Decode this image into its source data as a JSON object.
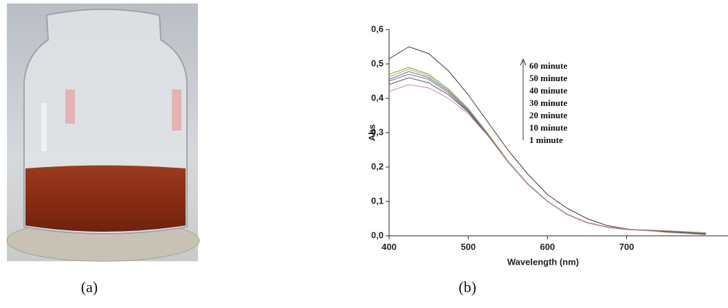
{
  "chart_data": {
    "type": "line",
    "x_label": "Wavelength (nm)",
    "y_label": "Abs",
    "x": [
      400,
      425,
      450,
      475,
      500,
      525,
      550,
      575,
      600,
      625,
      650,
      675,
      700,
      725,
      750,
      800
    ],
    "series": [
      {
        "name": "60 minute",
        "color": "#333333",
        "values": [
          0.515,
          0.55,
          0.53,
          0.48,
          0.41,
          0.33,
          0.25,
          0.18,
          0.12,
          0.08,
          0.05,
          0.03,
          0.02,
          0.015,
          0.012,
          0.005
        ]
      },
      {
        "name": "50 minute",
        "color": "#6aa84f",
        "values": [
          0.47,
          0.49,
          0.47,
          0.427,
          0.37,
          0.297,
          0.218,
          0.152,
          0.101,
          0.063,
          0.039,
          0.026,
          0.019,
          0.017,
          0.015,
          0.009
        ]
      },
      {
        "name": "40 minute",
        "color": "#b7a640",
        "values": [
          0.462,
          0.485,
          0.465,
          0.423,
          0.367,
          0.295,
          0.217,
          0.151,
          0.1,
          0.063,
          0.039,
          0.026,
          0.019,
          0.017,
          0.014,
          0.008
        ]
      },
      {
        "name": "30 minute",
        "color": "#4a6fa5",
        "values": [
          0.455,
          0.478,
          0.46,
          0.42,
          0.365,
          0.293,
          0.216,
          0.15,
          0.1,
          0.062,
          0.038,
          0.025,
          0.018,
          0.016,
          0.013,
          0.007
        ]
      },
      {
        "name": "20 minute",
        "color": "#8e5ea2",
        "values": [
          0.45,
          0.47,
          0.455,
          0.415,
          0.362,
          0.292,
          0.216,
          0.15,
          0.1,
          0.062,
          0.038,
          0.025,
          0.018,
          0.016,
          0.013,
          0.006
        ]
      },
      {
        "name": "10 minute",
        "color": "#555555",
        "values": [
          0.44,
          0.46,
          0.445,
          0.41,
          0.36,
          0.29,
          0.215,
          0.15,
          0.1,
          0.062,
          0.038,
          0.025,
          0.018,
          0.015,
          0.012,
          0.005
        ]
      },
      {
        "name": "1 minute",
        "color": "#c98a9e",
        "values": [
          0.42,
          0.44,
          0.43,
          0.4,
          0.355,
          0.29,
          0.215,
          0.15,
          0.1,
          0.062,
          0.038,
          0.025,
          0.018,
          0.015,
          0.01,
          0.003
        ]
      }
    ],
    "xlim": [
      400,
      828
    ],
    "ylim": [
      0,
      0.6
    ],
    "xticks": [
      400,
      500,
      600,
      700
    ],
    "yticks": [
      {
        "value": 0,
        "label": "0,0"
      },
      {
        "value": 0.1,
        "label": "0,1"
      },
      {
        "value": 0.2,
        "label": "0,2"
      },
      {
        "value": 0.3,
        "label": "0,3"
      },
      {
        "value": 0.4,
        "label": "0,4"
      },
      {
        "value": 0.5,
        "label": "0,5"
      },
      {
        "value": 0.6,
        "label": "0,6"
      }
    ]
  },
  "captions": [
    "(a)",
    "(b)"
  ]
}
